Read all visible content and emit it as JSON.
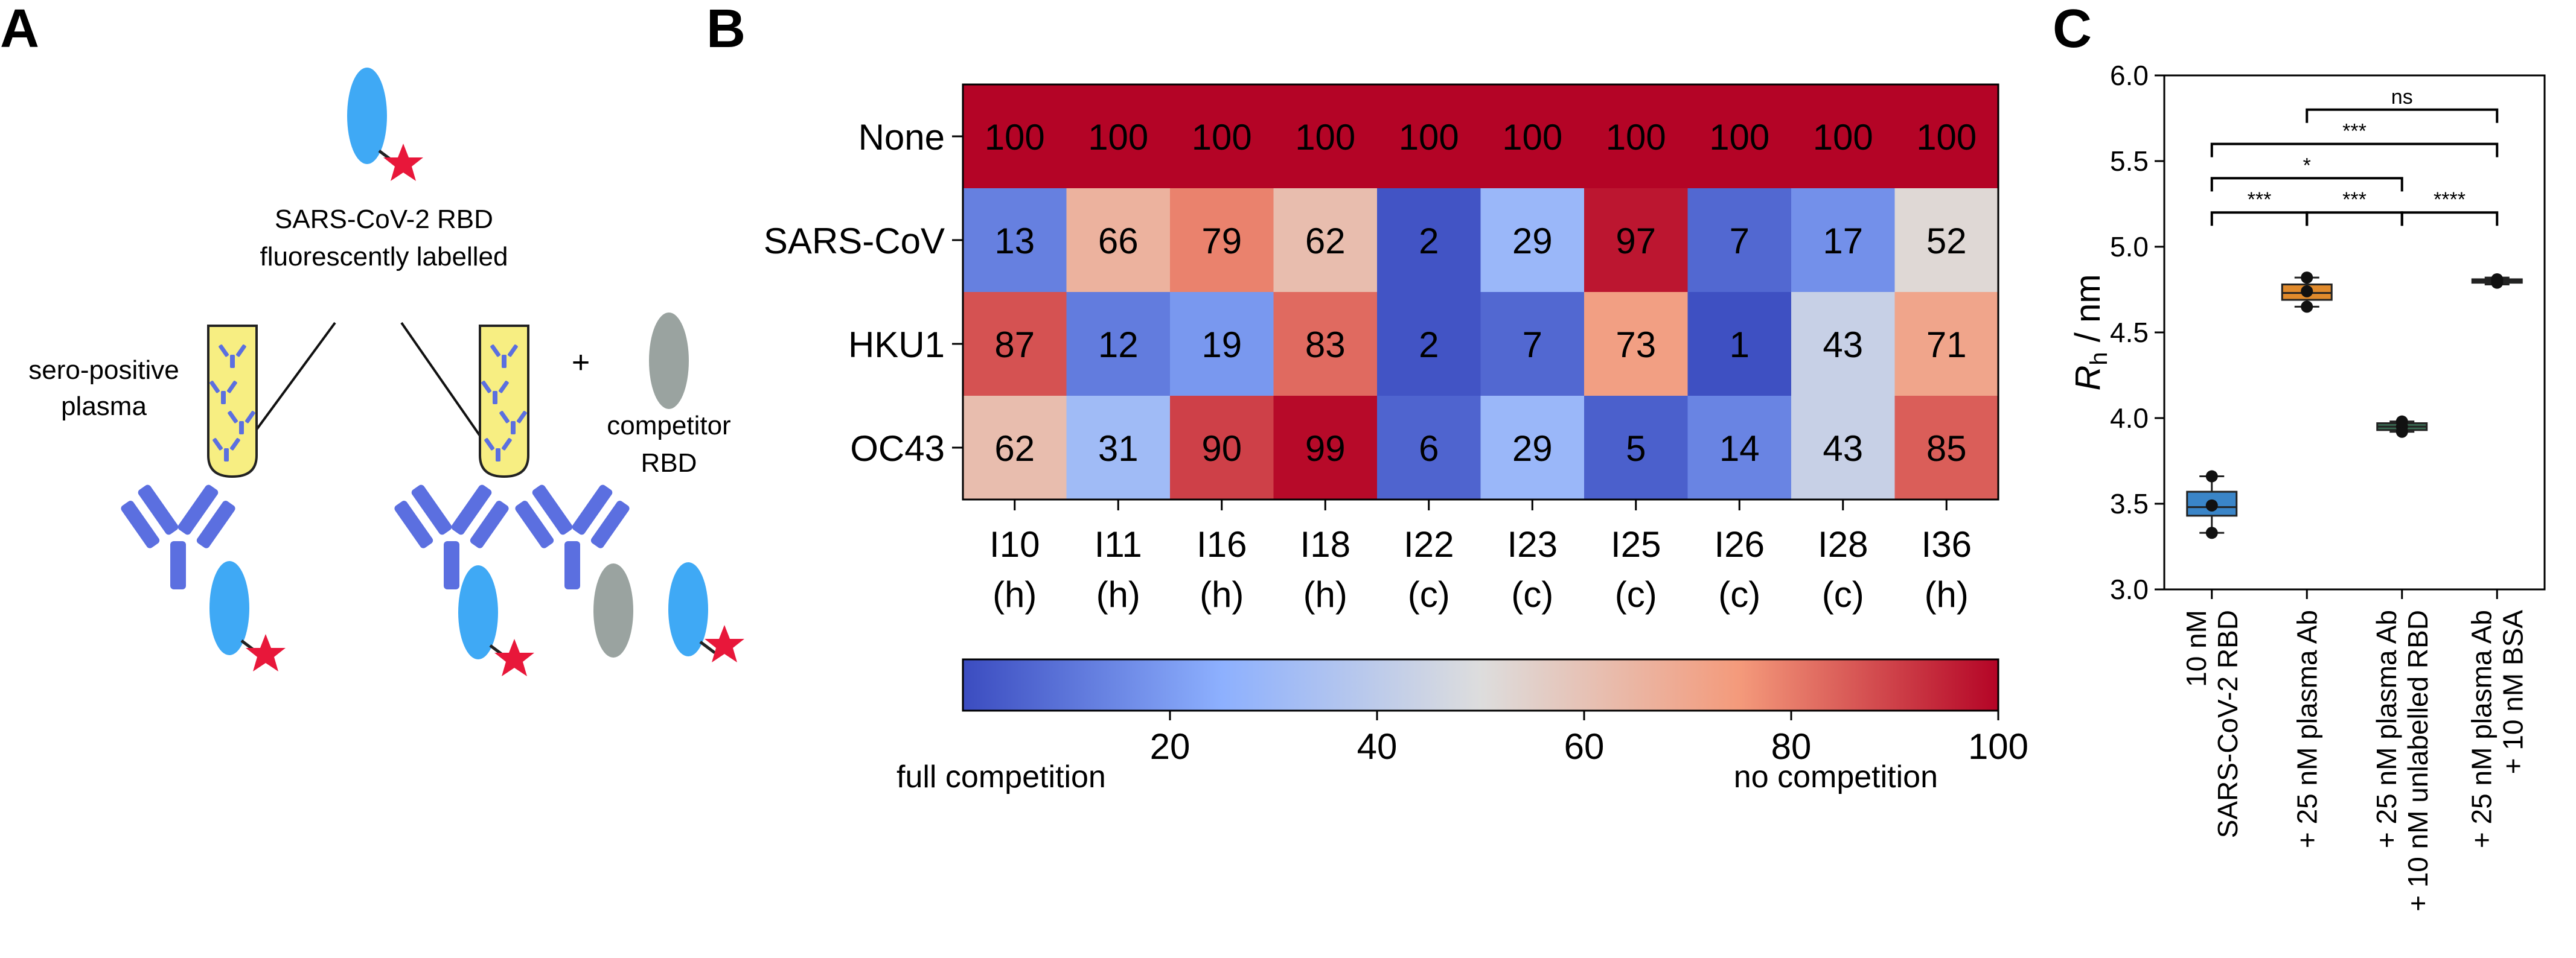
{
  "panels": {
    "a": {
      "letter": "A",
      "probe_label_line1": "SARS-CoV-2 RBD",
      "probe_label_line2": "fluorescently labelled",
      "plasma_label_line1": "sero-positive",
      "plasma_label_line2": "plasma",
      "plus_sign": "+",
      "competitor_label_line1": "competitor",
      "competitor_label_line2": "RBD"
    },
    "b": {
      "letter": "B"
    },
    "c": {
      "letter": "C"
    }
  },
  "colors": {
    "heat_low": "#3b4cc0",
    "heat_mid": "#dddddd",
    "heat_high": "#b40426",
    "box_blue": "#3a85c8",
    "box_orange": "#e08a2c",
    "box_green": "#3a6b53",
    "antibody": "#5b6fe0",
    "rbd_probe": "#3fa9f5",
    "rbd_competitor": "#9aa3a0",
    "star": "#e8173a",
    "plasma_tube": "#f7ee82"
  },
  "chart_data": [
    {
      "type": "heatmap",
      "rows": [
        "None",
        "SARS-CoV",
        "HKU1",
        "OC43"
      ],
      "columns": [
        {
          "id": "I10",
          "tag": "(h)"
        },
        {
          "id": "I11",
          "tag": "(h)"
        },
        {
          "id": "I16",
          "tag": "(h)"
        },
        {
          "id": "I18",
          "tag": "(h)"
        },
        {
          "id": "I22",
          "tag": "(c)"
        },
        {
          "id": "I23",
          "tag": "(c)"
        },
        {
          "id": "I25",
          "tag": "(c)"
        },
        {
          "id": "I26",
          "tag": "(c)"
        },
        {
          "id": "I28",
          "tag": "(c)"
        },
        {
          "id": "I36",
          "tag": "(h)"
        }
      ],
      "values": [
        [
          100,
          100,
          100,
          100,
          100,
          100,
          100,
          100,
          100,
          100
        ],
        [
          13,
          66,
          79,
          62,
          2,
          29,
          97,
          7,
          17,
          52
        ],
        [
          87,
          12,
          19,
          83,
          2,
          7,
          73,
          1,
          43,
          71
        ],
        [
          62,
          31,
          90,
          99,
          6,
          29,
          5,
          14,
          43,
          85
        ]
      ],
      "color_range": [
        0,
        100
      ],
      "colorbar": {
        "ticks": [
          "20",
          "40",
          "60",
          "80",
          "100"
        ],
        "tick_values": [
          20,
          40,
          60,
          80,
          100
        ],
        "label_low": "full competition",
        "label_high": "no competition"
      }
    },
    {
      "type": "box",
      "ylabel": "R",
      "ylabel_sub": "h",
      "ylabel_unit": " / nm",
      "ylim": [
        3.0,
        6.0
      ],
      "yticks": [
        "3.0",
        "3.5",
        "4.0",
        "4.5",
        "5.0",
        "5.5",
        "6.0"
      ],
      "ytick_values": [
        3.0,
        3.5,
        4.0,
        4.5,
        5.0,
        5.5,
        6.0
      ],
      "groups": [
        {
          "label_lines": [
            "10 nM",
            "SARS-CoV-2 RBD"
          ],
          "color": "#3a85c8",
          "q1": 3.43,
          "median": 3.48,
          "q3": 3.57,
          "whisker_low": 3.33,
          "whisker_high": 3.66,
          "points": [
            3.33,
            3.49,
            3.66
          ]
        },
        {
          "label_lines": [
            "+ 25 nM plasma Ab"
          ],
          "color": "#e08a2c",
          "q1": 4.69,
          "median": 4.73,
          "q3": 4.78,
          "whisker_low": 4.65,
          "whisker_high": 4.82,
          "points": [
            4.65,
            4.74,
            4.82
          ]
        },
        {
          "label_lines": [
            "+ 25 nM plasma Ab",
            "+ 10 nM unlabelled RBD"
          ],
          "color": "#3a6b53",
          "q1": 3.93,
          "median": 3.95,
          "q3": 3.97,
          "whisker_low": 3.92,
          "whisker_high": 3.98,
          "points": [
            3.92,
            3.95,
            3.98
          ]
        },
        {
          "label_lines": [
            "+ 25 nM plasma Ab",
            "+ 10 nM BSA"
          ],
          "color": "#3a6b53",
          "q1": 4.79,
          "median": 4.8,
          "q3": 4.81,
          "whisker_low": 4.78,
          "whisker_high": 4.82,
          "points": [
            4.79,
            4.8,
            4.81
          ]
        }
      ],
      "significance": [
        {
          "from": 0,
          "to": 1,
          "level": 5.2,
          "label": "***"
        },
        {
          "from": 1,
          "to": 2,
          "level": 5.2,
          "label": "***"
        },
        {
          "from": 2,
          "to": 3,
          "level": 5.2,
          "label": "****"
        },
        {
          "from": 0,
          "to": 2,
          "level": 5.4,
          "label": "*"
        },
        {
          "from": 0,
          "to": 3,
          "level": 5.6,
          "label": "***"
        },
        {
          "from": 1,
          "to": 3,
          "level": 5.8,
          "label": "ns"
        }
      ]
    }
  ]
}
